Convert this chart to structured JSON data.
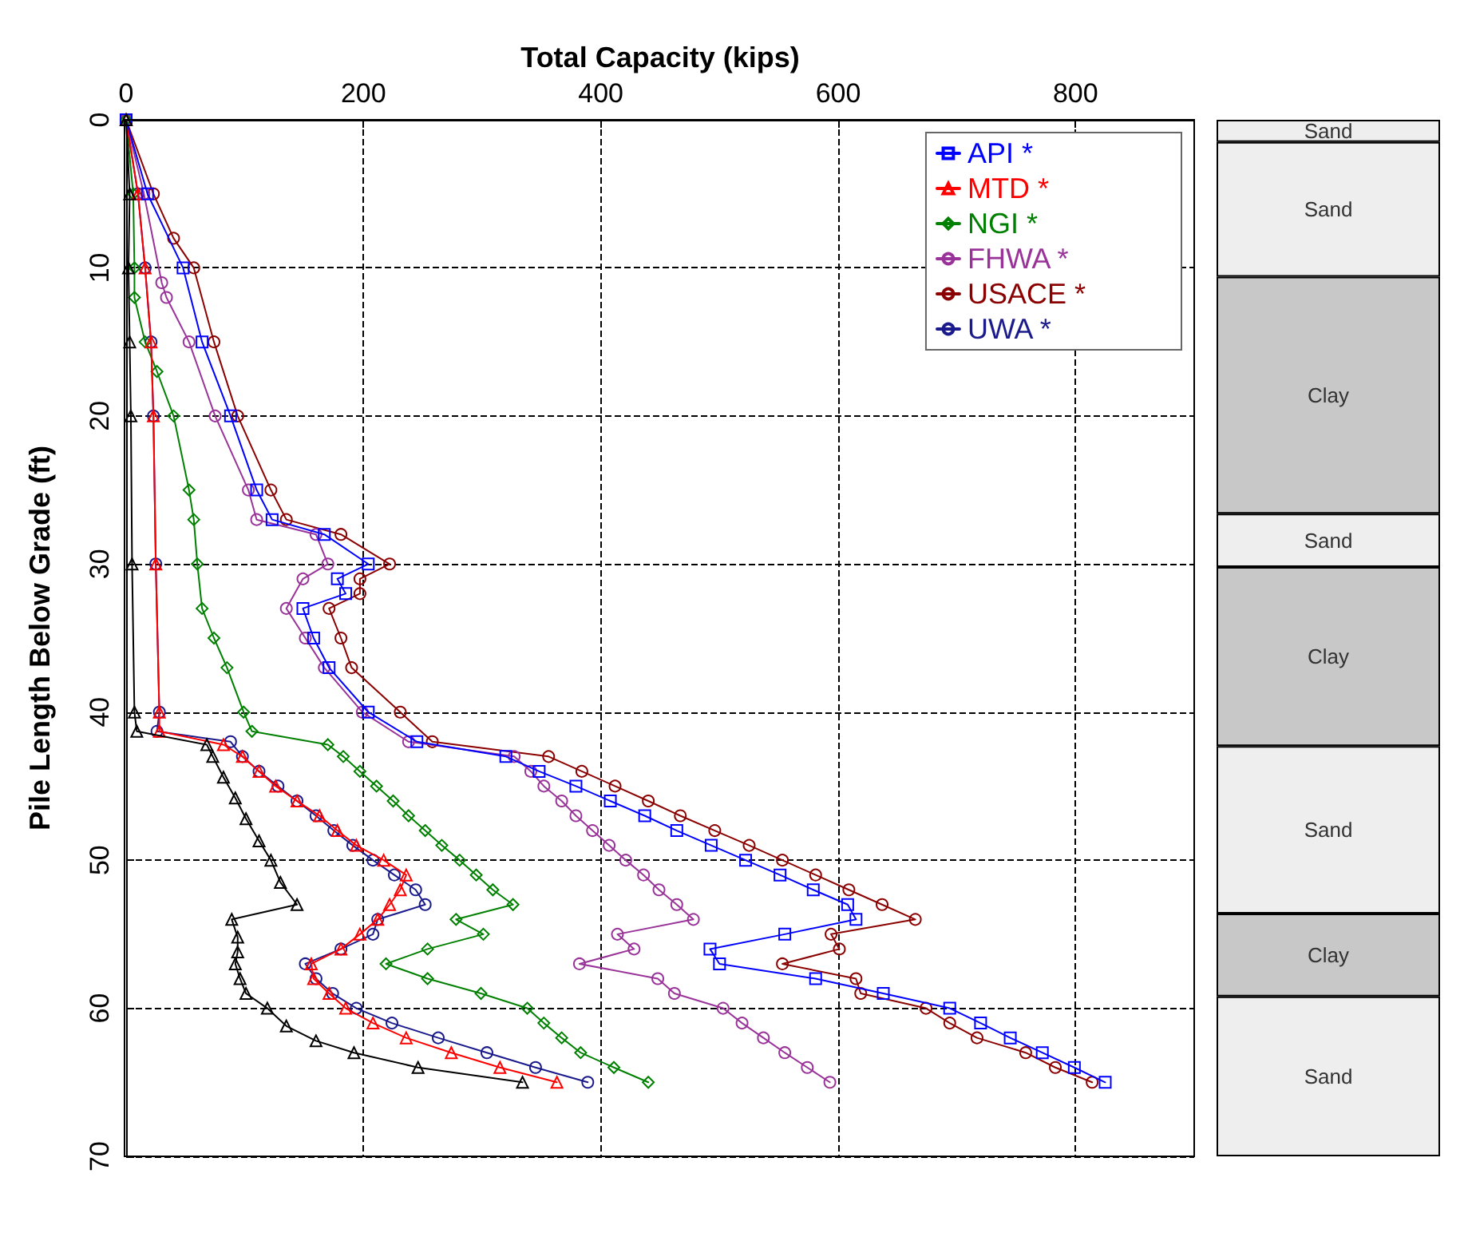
{
  "chart_data": [
    {
      "type": "line",
      "xlabel": "Total Capacity (kips)",
      "ylabel": "Pile Length Below Grade (ft)",
      "xlim": [
        0,
        900
      ],
      "xticks": [
        0,
        200,
        400,
        600,
        800
      ],
      "ylim": [
        70,
        0
      ],
      "yticks": [
        0,
        10,
        20,
        30,
        40,
        50,
        60,
        70
      ],
      "grid": true,
      "legend": "top right",
      "line_style": "solid",
      "series": [
        {
          "color": "#000000",
          "marker": "triangle",
          "x": [
            0,
            3,
            2,
            3,
            4,
            5,
            7,
            9,
            68,
            73,
            82,
            92,
            101,
            112,
            122,
            130,
            144,
            89,
            94,
            94,
            92,
            96,
            101,
            119,
            135,
            160,
            192,
            246,
            334
          ],
          "values": [
            0,
            5,
            10,
            15,
            20,
            30,
            40,
            41.3,
            42.2,
            43,
            44.4,
            45.8,
            47.2,
            48.7,
            50,
            51.5,
            53,
            54,
            55.2,
            56.2,
            57,
            58,
            59,
            60,
            61.2,
            62.2,
            63,
            64,
            65
          ]
        },
        {
          "name": "API *",
          "color": "#0000ff",
          "marker": "square",
          "x": [
            0,
            18,
            48,
            64,
            88,
            110,
            123,
            167,
            204,
            178,
            185,
            149,
            158,
            171,
            204,
            245,
            320,
            348,
            379,
            408,
            437,
            464,
            493,
            522,
            551,
            579,
            608,
            615,
            555,
            492,
            500,
            581,
            638,
            694,
            720,
            745,
            772,
            799,
            825
          ],
          "values": [
            0,
            5,
            10,
            15,
            20,
            25,
            27,
            28,
            30,
            31,
            32,
            33,
            35,
            37,
            40,
            42,
            43,
            44,
            45,
            46,
            47,
            48,
            49,
            50,
            51,
            52,
            53,
            54,
            55,
            56,
            57,
            58,
            59,
            60,
            61,
            62,
            63,
            64,
            65
          ]
        },
        {
          "name": "MTD *",
          "color": "#ff0000",
          "marker": "triangle",
          "x": [
            0,
            10,
            16,
            21,
            23,
            25,
            28,
            28,
            82,
            98,
            112,
            126,
            144,
            163,
            178,
            194,
            217,
            236,
            231,
            222,
            212,
            197,
            181,
            156,
            158,
            171,
            185,
            208,
            236,
            274,
            315,
            363
          ],
          "values": [
            0,
            5,
            10,
            15,
            20,
            30,
            40,
            41.3,
            42.2,
            43,
            44,
            45,
            46,
            47,
            48,
            49,
            50,
            51,
            52,
            53,
            54,
            55,
            56,
            57,
            58,
            59,
            60,
            61,
            62,
            63,
            64,
            65
          ]
        },
        {
          "name": "NGI *",
          "color": "#008000",
          "marker": "diamond",
          "x": [
            0,
            6,
            7,
            7,
            16,
            26,
            40,
            53,
            57,
            60,
            64,
            74,
            85,
            99,
            106,
            170,
            183,
            197,
            211,
            225,
            238,
            252,
            266,
            281,
            295,
            309,
            326,
            278,
            301,
            254,
            219,
            254,
            299,
            338,
            352,
            367,
            383,
            411,
            440
          ],
          "values": [
            0,
            5,
            10,
            12,
            15,
            17,
            20,
            25,
            27,
            30,
            33,
            35,
            37,
            40,
            41.3,
            42.2,
            43,
            44,
            45,
            46,
            47,
            48,
            49,
            50,
            51,
            52,
            53,
            54,
            55,
            56,
            57,
            58,
            59,
            60,
            61,
            62,
            63,
            64,
            65
          ]
        },
        {
          "name": "FHWA *",
          "color": "#993399",
          "marker": "circle",
          "x": [
            0,
            15,
            30,
            34,
            53,
            75,
            103,
            110,
            160,
            170,
            149,
            135,
            151,
            167,
            199,
            238,
            327,
            341,
            352,
            367,
            379,
            393,
            407,
            421,
            436,
            449,
            464,
            478,
            414,
            428,
            382,
            448,
            462,
            503,
            519,
            537,
            555,
            574,
            593
          ],
          "values": [
            0,
            5,
            11,
            12,
            15,
            20,
            25,
            27,
            28,
            30,
            31,
            33,
            35,
            37,
            40,
            42,
            43,
            44,
            45,
            46,
            47,
            48,
            49,
            50,
            51,
            52,
            53,
            54,
            55,
            56,
            57,
            58,
            59,
            60,
            61,
            62,
            63,
            64,
            65
          ]
        },
        {
          "name": "USACE *",
          "color": "#8b0000",
          "marker": "circle",
          "x": [
            0,
            23,
            40,
            57,
            74,
            94,
            122,
            135,
            181,
            222,
            197,
            197,
            171,
            181,
            190,
            231,
            258,
            356,
            384,
            412,
            440,
            467,
            496,
            525,
            553,
            581,
            609,
            637,
            665,
            594,
            601,
            553,
            615,
            619,
            674,
            694,
            717,
            758,
            783,
            814
          ],
          "values": [
            0,
            5,
            8,
            10,
            15,
            20,
            25,
            27,
            28,
            30,
            31,
            32,
            33,
            35,
            37,
            40,
            42,
            43,
            44,
            45,
            46,
            47,
            48,
            49,
            50,
            51,
            52,
            53,
            54,
            55,
            56,
            57,
            58,
            59,
            60,
            61,
            62,
            63,
            64,
            65
          ]
        },
        {
          "name": "UWA *",
          "color": "#1a1a8c",
          "marker": "circle",
          "x": [
            0,
            10,
            16,
            21,
            23,
            25,
            28,
            26,
            88,
            98,
            112,
            128,
            144,
            160,
            175,
            191,
            208,
            226,
            244,
            252,
            212,
            208,
            181,
            151,
            160,
            174,
            194,
            224,
            263,
            304,
            345,
            389
          ],
          "values": [
            0,
            5,
            10,
            15,
            20,
            30,
            40,
            41.3,
            42,
            43,
            44,
            45,
            46,
            47,
            48,
            49,
            50,
            51,
            52,
            53,
            54,
            55,
            56,
            57,
            58,
            59,
            60,
            61,
            62,
            63,
            64,
            65
          ]
        }
      ]
    },
    {
      "type": "bar",
      "stacked": true,
      "categories": [
        null
      ],
      "ylim": [
        70,
        0
      ],
      "tick_labels": false,
      "series": [
        {
          "color": "#eeeeee",
          "values": [
            1.5
          ],
          "value_labels": [
            "Sand"
          ]
        },
        {
          "color": "#eeeeee",
          "values": [
            9.1
          ],
          "value_labels": [
            "Sand"
          ]
        },
        {
          "color": "#c8c8c8",
          "values": [
            16
          ],
          "value_labels": [
            "Clay"
          ]
        },
        {
          "color": "#eeeeee",
          "values": [
            3.6
          ],
          "value_labels": [
            "Sand"
          ]
        },
        {
          "color": "#c8c8c8",
          "values": [
            12.1
          ],
          "value_labels": [
            "Clay"
          ]
        },
        {
          "color": "#eeeeee",
          "values": [
            11.3
          ],
          "value_labels": [
            "Sand"
          ]
        },
        {
          "color": "#c8c8c8",
          "values": [
            5.6
          ],
          "value_labels": [
            "Clay"
          ]
        },
        {
          "color": "#eeeeee",
          "values": [
            10.8
          ],
          "value_labels": [
            "Sand"
          ]
        }
      ]
    }
  ]
}
